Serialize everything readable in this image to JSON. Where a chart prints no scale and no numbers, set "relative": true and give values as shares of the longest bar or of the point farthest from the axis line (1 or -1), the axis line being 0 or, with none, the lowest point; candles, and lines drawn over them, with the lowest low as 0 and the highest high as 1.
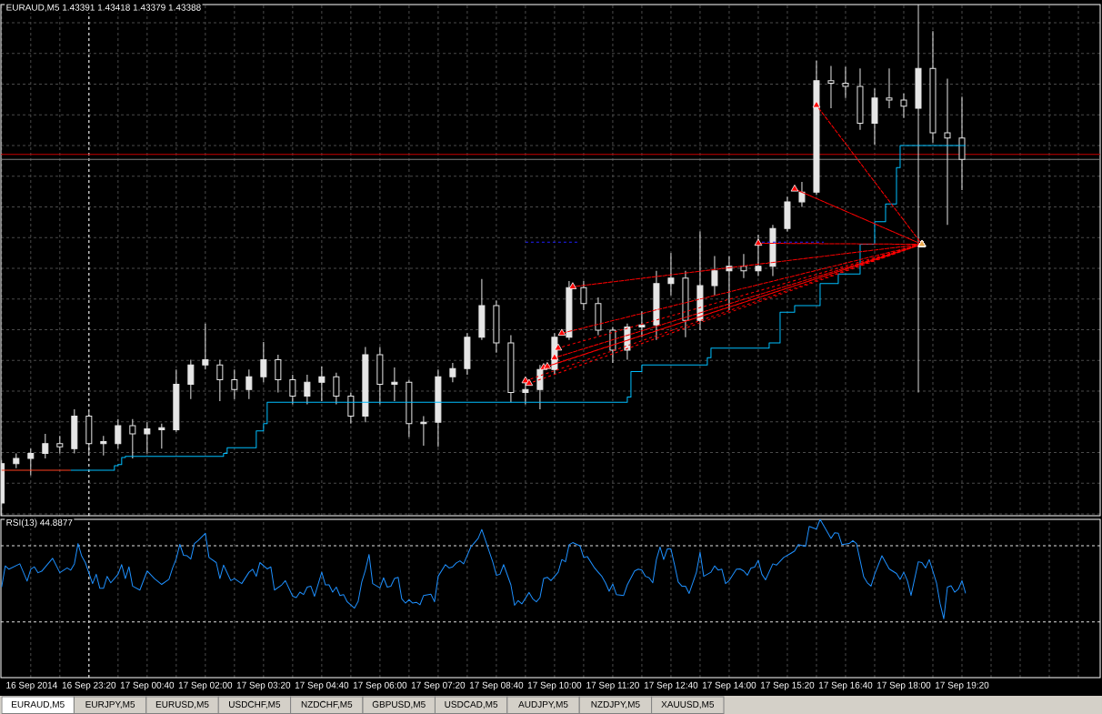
{
  "chart_data": [
    {
      "type": "candlestick",
      "title": "EURAUD,M5 1.43391 1.43418 1.43379 1.43388",
      "relative": true,
      "color": "#e6e6e6",
      "x": [
        "2014-09-16T21:20",
        "2014-09-16T21:40",
        "2014-09-16T22:00",
        "2014-09-16T22:20",
        "2014-09-16T22:40",
        "2014-09-16T23:00",
        "2014-09-16T23:20",
        "2014-09-16T23:40",
        "2014-09-17T00:00",
        "2014-09-17T00:20",
        "2014-09-17T00:40",
        "2014-09-17T01:00",
        "2014-09-17T01:20",
        "2014-09-17T01:40",
        "2014-09-17T02:00",
        "2014-09-17T02:20",
        "2014-09-17T02:40",
        "2014-09-17T03:00",
        "2014-09-17T03:20",
        "2014-09-17T03:40",
        "2014-09-17T04:00",
        "2014-09-17T04:20",
        "2014-09-17T04:40",
        "2014-09-17T05:00",
        "2014-09-17T05:20",
        "2014-09-17T05:40",
        "2014-09-17T06:00",
        "2014-09-17T06:20",
        "2014-09-17T06:40",
        "2014-09-17T07:00",
        "2014-09-17T07:20",
        "2014-09-17T07:40",
        "2014-09-17T08:00",
        "2014-09-17T08:20",
        "2014-09-17T08:40",
        "2014-09-17T09:00",
        "2014-09-17T09:20",
        "2014-09-17T09:40",
        "2014-09-17T10:00",
        "2014-09-17T10:20",
        "2014-09-17T10:40",
        "2014-09-17T11:00",
        "2014-09-17T11:20",
        "2014-09-17T11:40",
        "2014-09-17T12:00",
        "2014-09-17T12:20",
        "2014-09-17T12:40",
        "2014-09-17T13:00",
        "2014-09-17T13:20",
        "2014-09-17T13:40",
        "2014-09-17T14:00",
        "2014-09-17T14:20",
        "2014-09-17T14:40",
        "2014-09-17T15:00",
        "2014-09-17T15:20",
        "2014-09-17T15:40",
        "2014-09-17T16:00",
        "2014-09-17T16:20",
        "2014-09-17T16:40",
        "2014-09-17T17:00",
        "2014-09-17T17:20",
        "2014-09-17T17:40",
        "2014-09-17T18:00",
        "2014-09-17T18:20",
        "2014-09-17T18:40",
        "2014-09-17T19:00",
        "2014-09-17T19:20"
      ],
      "ohlc": [
        [
          0.025,
          0.108,
          0,
          0.102
        ],
        [
          0.102,
          0.122,
          0.093,
          0.112
        ],
        [
          0.112,
          0.131,
          0.079,
          0.122
        ],
        [
          0.122,
          0.16,
          0.112,
          0.141
        ],
        [
          0.141,
          0.156,
          0.122,
          0.135
        ],
        [
          0.131,
          0.208,
          0.122,
          0.195
        ],
        [
          0.195,
          0.203,
          0.122,
          0.141
        ],
        [
          0.141,
          0.156,
          0.118,
          0.145
        ],
        [
          0.141,
          0.189,
          0.131,
          0.176
        ],
        [
          0.176,
          0.189,
          0.112,
          0.16
        ],
        [
          0.16,
          0.183,
          0.122,
          0.17
        ],
        [
          0.168,
          0.18,
          0.131,
          0.172
        ],
        [
          0.168,
          0.286,
          0.164,
          0.257
        ],
        [
          0.257,
          0.305,
          0.228,
          0.295
        ],
        [
          0.295,
          0.376,
          0.286,
          0.305
        ],
        [
          0.295,
          0.305,
          0.224,
          0.266
        ],
        [
          0.266,
          0.286,
          0.228,
          0.247
        ],
        [
          0.247,
          0.286,
          0.228,
          0.272
        ],
        [
          0.272,
          0.34,
          0.261,
          0.305
        ],
        [
          0.305,
          0.315,
          0.241,
          0.266
        ],
        [
          0.266,
          0.276,
          0.218,
          0.234
        ],
        [
          0.234,
          0.276,
          0.218,
          0.261
        ],
        [
          0.261,
          0.292,
          0.224,
          0.272
        ],
        [
          0.272,
          0.28,
          0.218,
          0.234
        ],
        [
          0.234,
          0.241,
          0.18,
          0.195
        ],
        [
          0.195,
          0.33,
          0.183,
          0.315
        ],
        [
          0.315,
          0.33,
          0.218,
          0.257
        ],
        [
          0.257,
          0.29,
          0.224,
          0.261
        ],
        [
          0.261,
          0.266,
          0.154,
          0.18
        ],
        [
          0.18,
          0.195,
          0.137,
          0.183
        ],
        [
          0.183,
          0.286,
          0.135,
          0.272
        ],
        [
          0.272,
          0.299,
          0.261,
          0.288
        ],
        [
          0.288,
          0.357,
          0.276,
          0.349
        ],
        [
          0.349,
          0.463,
          0.344,
          0.411
        ],
        [
          0.411,
          0.421,
          0.319,
          0.338
        ],
        [
          0.338,
          0.353,
          0.222,
          0.241
        ],
        [
          0.241,
          0.266,
          0.218,
          0.247
        ],
        [
          0.247,
          0.295,
          0.208,
          0.286
        ],
        [
          0.286,
          0.357,
          0.276,
          0.349
        ],
        [
          0.349,
          0.459,
          0.344,
          0.446
        ],
        [
          0.446,
          0.459,
          0.402,
          0.415
        ],
        [
          0.415,
          0.427,
          0.353,
          0.363
        ],
        [
          0.363,
          0.369,
          0.299,
          0.324
        ],
        [
          0.324,
          0.376,
          0.305,
          0.369
        ],
        [
          0.369,
          0.4,
          0.349,
          0.373
        ],
        [
          0.373,
          0.479,
          0.344,
          0.454
        ],
        [
          0.454,
          0.514,
          0.431,
          0.465
        ],
        [
          0.465,
          0.479,
          0.349,
          0.382
        ],
        [
          0.382,
          0.556,
          0.363,
          0.45
        ],
        [
          0.45,
          0.508,
          0.431,
          0.479
        ],
        [
          0.479,
          0.508,
          0.402,
          0.488
        ],
        [
          0.488,
          0.512,
          0.465,
          0.479
        ],
        [
          0.479,
          0.55,
          0.469,
          0.488
        ],
        [
          0.488,
          0.569,
          0.469,
          0.562
        ],
        [
          0.562,
          0.624,
          0.556,
          0.614
        ],
        [
          0.614,
          0.653,
          0.604,
          0.633
        ],
        [
          0.633,
          0.89,
          0.627,
          0.851
        ],
        [
          0.851,
          0.88,
          0.797,
          0.846
        ],
        [
          0.846,
          0.878,
          0.817,
          0.84
        ],
        [
          0.84,
          0.875,
          0.755,
          0.768
        ],
        [
          0.768,
          0.836,
          0.726,
          0.817
        ],
        [
          0.817,
          0.875,
          0.797,
          0.813
        ],
        [
          0.813,
          0.826,
          0.778,
          0.801
        ],
        [
          0.797,
          1,
          0.241,
          0.875
        ],
        [
          0.875,
          0.948,
          0.73,
          0.749
        ],
        [
          0.749,
          0.855,
          0.569,
          0.739
        ],
        [
          0.739,
          0.82,
          0.637,
          0.697
        ]
      ],
      "series": [
        {
          "type": "step",
          "color": "#ff4020",
          "x": [
            "2014-09-16T21:20",
            "2014-09-16T22:55"
          ],
          "values": [
            0.089,
            0.089
          ]
        },
        {
          "type": "step",
          "color": "#00bfff",
          "x": [
            "2014-09-16T22:55",
            "2014-09-16T23:55",
            "2014-09-17T00:00",
            "2014-09-17T00:05",
            "2014-09-17T00:10",
            "2014-09-17T02:25",
            "2014-09-17T02:30",
            "2014-09-17T03:10",
            "2014-09-17T03:20",
            "2014-09-17T03:25",
            "2014-09-17T11:40",
            "2014-09-17T11:45",
            "2014-09-17T12:00",
            "2014-09-17T13:30",
            "2014-09-17T13:35",
            "2014-09-17T14:55",
            "2014-09-17T15:10",
            "2014-09-17T15:30",
            "2014-09-17T16:05",
            "2014-09-17T16:30",
            "2014-09-17T17:00",
            "2014-09-17T17:20",
            "2014-09-17T17:35",
            "2014-09-17T17:50",
            "2014-09-17T17:55",
            "2014-09-17T19:25"
          ],
          "values": [
            0.089,
            0.098,
            0.1,
            0.114,
            0.116,
            0.122,
            0.133,
            0.166,
            0.18,
            0.222,
            0.232,
            0.282,
            0.295,
            0.309,
            0.328,
            0.338,
            0.398,
            0.411,
            0.454,
            0.473,
            0.531,
            0.575,
            0.61,
            0.681,
            0.724,
            0.724
          ]
        },
        {
          "type": "line",
          "color": "#2020ff",
          "line_style": "dashed",
          "x": [
            "2014-09-17T09:20",
            "2014-09-17T10:35"
          ],
          "values": [
            0.535,
            0.535
          ]
        },
        {
          "type": "line",
          "color": "#2020ff",
          "line_style": "dashed",
          "x": [
            "2014-09-17T14:45",
            "2014-09-17T16:10"
          ],
          "values": [
            0.535,
            0.535
          ]
        },
        {
          "type": "line",
          "color": "#ff0000",
          "line_style": "dashed",
          "marker": "triangle",
          "x": [
            "2014-09-17T09:20",
            "2014-09-17T18:25",
            "2014-09-17T09:25",
            "2014-09-17T18:25",
            "2014-09-17T09:45",
            "2014-09-17T18:25",
            "2014-09-17T09:50",
            "2014-09-17T18:25",
            "2014-09-17T10:00",
            "2014-09-17T18:25",
            "2014-09-17T10:05",
            "2014-09-17T18:25",
            "2014-09-17T10:10",
            "2014-09-17T18:25",
            "2014-09-17T10:25",
            "2014-09-17T18:25",
            "2014-09-17T14:40",
            "2014-09-17T18:25",
            "2014-09-17T15:30",
            "2014-09-17T18:25",
            "2014-09-17T16:00",
            "2014-09-17T18:25"
          ],
          "values": [
            0.264,
            0.531,
            0.259,
            0.531,
            0.29,
            0.531,
            0.292,
            0.531,
            0.309,
            0.531,
            0.328,
            0.531,
            0.357,
            0.531,
            0.448,
            0.531,
            0.533,
            0.531,
            0.639,
            0.531,
            0.803,
            0.531
          ]
        },
        {
          "type": "scatter",
          "color": "#e8a84c",
          "marker": "triangle",
          "x": [
            "2014-09-17T18:25"
          ],
          "values": [
            0.531
          ]
        }
      ],
      "xlim": [
        "2014-09-16T21:19",
        "2014-09-17T22:30"
      ],
      "xticks": [
        {
          "value": "2014-09-16T21:20",
          "label": null
        },
        {
          "value": "2014-09-16T23:20",
          "label": null
        },
        {
          "value": "2014-09-17T00:40",
          "label": null
        },
        {
          "value": "2014-09-17T02:00",
          "label": null
        },
        {
          "value": "2014-09-17T03:20",
          "label": null
        },
        {
          "value": "2014-09-17T04:40",
          "label": null
        },
        {
          "value": "2014-09-17T06:00",
          "label": null
        },
        {
          "value": "2014-09-17T07:20",
          "label": null
        },
        {
          "value": "2014-09-17T08:40",
          "label": null
        },
        {
          "value": "2014-09-17T10:00",
          "label": null
        },
        {
          "value": "2014-09-17T11:20",
          "label": null
        },
        {
          "value": "2014-09-17T12:40",
          "label": null
        },
        {
          "value": "2014-09-17T14:00",
          "label": null
        },
        {
          "value": "2014-09-17T15:20",
          "label": null
        },
        {
          "value": "2014-09-17T16:40",
          "label": null
        },
        {
          "value": "2014-09-17T18:00",
          "label": null
        },
        {
          "value": "2014-09-17T19:20",
          "label": null
        }
      ],
      "grid": true,
      "tick_labels": false,
      "ref_lines": [
        {
          "axis": "x",
          "value": "2014-09-16T23:20",
          "color": "#ffffff",
          "line_style": "dashed"
        },
        {
          "axis": "y",
          "value": 0.707,
          "color": "#c80000"
        },
        {
          "axis": "y",
          "value": 0.697,
          "color": "#808080"
        }
      ]
    },
    {
      "type": "line",
      "title": "RSI(13) 44.8877",
      "relative": true,
      "x": [
        "2014-09-16T21:20",
        "2014-09-16T21:25",
        "2014-09-16T21:30",
        "2014-09-16T21:45",
        "2014-09-16T21:55",
        "2014-09-16T22:00",
        "2014-09-16T22:05",
        "2014-09-16T22:10",
        "2014-09-16T22:15",
        "2014-09-16T22:30",
        "2014-09-16T22:40",
        "2014-09-16T22:50",
        "2014-09-16T22:55",
        "2014-09-16T23:00",
        "2014-09-16T23:05",
        "2014-09-16T23:10",
        "2014-09-16T23:15",
        "2014-09-16T23:25",
        "2014-09-16T23:30",
        "2014-09-16T23:35",
        "2014-09-16T23:40",
        "2014-09-16T23:45",
        "2014-09-16T23:50",
        "2014-09-17T00:00",
        "2014-09-17T00:05",
        "2014-09-17T00:10",
        "2014-09-17T00:15",
        "2014-09-17T00:20",
        "2014-09-17T00:30",
        "2014-09-17T00:40",
        "2014-09-17T00:50",
        "2014-09-17T01:00",
        "2014-09-17T01:10",
        "2014-09-17T01:15",
        "2014-09-17T01:20",
        "2014-09-17T01:25",
        "2014-09-17T01:30",
        "2014-09-17T01:35",
        "2014-09-17T01:40",
        "2014-09-17T01:45",
        "2014-09-17T01:50",
        "2014-09-17T02:00",
        "2014-09-17T02:05",
        "2014-09-17T02:15",
        "2014-09-17T02:20",
        "2014-09-17T02:25",
        "2014-09-17T02:35",
        "2014-09-17T02:40",
        "2014-09-17T02:50",
        "2014-09-17T03:00",
        "2014-09-17T03:05",
        "2014-09-17T03:10",
        "2014-09-17T03:15",
        "2014-09-17T03:25",
        "2014-09-17T03:30",
        "2014-09-17T03:35",
        "2014-09-17T03:45",
        "2014-09-17T03:50",
        "2014-09-17T04:00",
        "2014-09-17T04:05",
        "2014-09-17T04:10",
        "2014-09-17T04:15",
        "2014-09-17T04:20",
        "2014-09-17T04:25",
        "2014-09-17T04:30",
        "2014-09-17T04:40",
        "2014-09-17T04:45",
        "2014-09-17T04:50",
        "2014-09-17T04:55",
        "2014-09-17T05:00",
        "2014-09-17T05:05",
        "2014-09-17T05:10",
        "2014-09-17T05:15",
        "2014-09-17T05:25",
        "2014-09-17T05:30",
        "2014-09-17T05:35",
        "2014-09-17T05:40",
        "2014-09-17T05:45",
        "2014-09-17T05:50",
        "2014-09-17T06:00",
        "2014-09-17T06:05",
        "2014-09-17T06:10",
        "2014-09-17T06:15",
        "2014-09-17T06:20",
        "2014-09-17T06:25",
        "2014-09-17T06:30",
        "2014-09-17T06:35",
        "2014-09-17T06:40",
        "2014-09-17T06:45",
        "2014-09-17T06:50",
        "2014-09-17T06:55",
        "2014-09-17T07:00",
        "2014-09-17T07:10",
        "2014-09-17T07:15",
        "2014-09-17T07:20",
        "2014-09-17T07:30",
        "2014-09-17T07:35",
        "2014-09-17T07:40",
        "2014-09-17T07:45",
        "2014-09-17T07:50",
        "2014-09-17T07:55",
        "2014-09-17T08:05",
        "2014-09-17T08:10",
        "2014-09-17T08:15",
        "2014-09-17T08:20",
        "2014-09-17T08:30",
        "2014-09-17T08:35",
        "2014-09-17T08:40",
        "2014-09-17T08:45",
        "2014-09-17T08:50",
        "2014-09-17T09:00",
        "2014-09-17T09:05",
        "2014-09-17T09:10",
        "2014-09-17T09:15",
        "2014-09-17T09:25",
        "2014-09-17T09:30",
        "2014-09-17T09:35",
        "2014-09-17T09:40",
        "2014-09-17T09:45",
        "2014-09-17T09:50",
        "2014-09-17T09:55",
        "2014-09-17T10:05",
        "2014-09-17T10:10",
        "2014-09-17T10:15",
        "2014-09-17T10:20",
        "2014-09-17T10:25",
        "2014-09-17T10:35",
        "2014-09-17T10:40",
        "2014-09-17T10:45",
        "2014-09-17T10:55",
        "2014-09-17T11:00",
        "2014-09-17T11:05",
        "2014-09-17T11:10",
        "2014-09-17T11:15",
        "2014-09-17T11:20",
        "2014-09-17T11:25",
        "2014-09-17T11:35",
        "2014-09-17T11:40",
        "2014-09-17T11:50",
        "2014-09-17T11:55",
        "2014-09-17T12:00",
        "2014-09-17T12:05",
        "2014-09-17T12:10",
        "2014-09-17T12:15",
        "2014-09-17T12:20",
        "2014-09-17T12:25",
        "2014-09-17T12:30",
        "2014-09-17T12:35",
        "2014-09-17T12:40",
        "2014-09-17T12:45",
        "2014-09-17T12:50",
        "2014-09-17T12:55",
        "2014-09-17T13:00",
        "2014-09-17T13:05",
        "2014-09-17T13:15",
        "2014-09-17T13:20",
        "2014-09-17T13:25",
        "2014-09-17T13:35",
        "2014-09-17T13:40",
        "2014-09-17T13:45",
        "2014-09-17T13:50",
        "2014-09-17T13:55",
        "2014-09-17T14:00",
        "2014-09-17T14:10",
        "2014-09-17T14:15",
        "2014-09-17T14:20",
        "2014-09-17T14:25",
        "2014-09-17T14:30",
        "2014-09-17T14:35",
        "2014-09-17T14:40",
        "2014-09-17T14:45",
        "2014-09-17T14:50",
        "2014-09-17T15:00",
        "2014-09-17T15:05",
        "2014-09-17T15:15",
        "2014-09-17T15:25",
        "2014-09-17T15:30",
        "2014-09-17T15:35",
        "2014-09-17T15:45",
        "2014-09-17T15:50",
        "2014-09-17T16:00",
        "2014-09-17T16:05",
        "2014-09-17T16:15",
        "2014-09-17T16:20",
        "2014-09-17T16:25",
        "2014-09-17T16:30",
        "2014-09-17T16:35",
        "2014-09-17T16:45",
        "2014-09-17T16:50",
        "2014-09-17T16:55",
        "2014-09-17T17:05",
        "2014-09-17T17:10",
        "2014-09-17T17:15",
        "2014-09-17T17:20",
        "2014-09-17T17:30",
        "2014-09-17T17:40",
        "2014-09-17T17:50",
        "2014-09-17T17:55",
        "2014-09-17T18:00",
        "2014-09-17T18:05",
        "2014-09-17T18:10",
        "2014-09-17T18:20",
        "2014-09-17T18:25",
        "2014-09-17T18:30",
        "2014-09-17T18:35",
        "2014-09-17T18:45",
        "2014-09-17T18:50",
        "2014-09-17T18:55",
        "2014-09-17T19:00",
        "2014-09-17T19:05",
        "2014-09-17T19:10",
        "2014-09-17T19:15",
        "2014-09-17T19:20",
        "2014-09-17T19:25"
      ],
      "series": [
        {
          "color": "#1e90ff",
          "values": [
            0.572,
            0.706,
            0.685,
            0.719,
            0.61,
            0.685,
            0.7,
            0.663,
            0.672,
            0.754,
            0.663,
            0.693,
            0.679,
            0.719,
            0.847,
            0.768,
            0.727,
            0.594,
            0.653,
            0.564,
            0.564,
            0.64,
            0.599,
            0.653,
            0.714,
            0.626,
            0.7,
            0.578,
            0.553,
            0.674,
            0.626,
            0.589,
            0.621,
            0.693,
            0.751,
            0.842,
            0.773,
            0.77,
            0.749,
            0.847,
            0.866,
            0.912,
            0.759,
            0.727,
            0.626,
            0.711,
            0.613,
            0.626,
            0.594,
            0.666,
            0.685,
            0.64,
            0.727,
            0.687,
            0.7,
            0.553,
            0.586,
            0.613,
            0.514,
            0.506,
            0.54,
            0.525,
            0.572,
            0.578,
            0.514,
            0.666,
            0.586,
            0.586,
            0.54,
            0.572,
            0.519,
            0.525,
            0.479,
            0.439,
            0.481,
            0.604,
            0.679,
            0.778,
            0.594,
            0.567,
            0.631,
            0.572,
            0.578,
            0.626,
            0.634,
            0.498,
            0.471,
            0.492,
            0.471,
            0.476,
            0.46,
            0.519,
            0.527,
            0.479,
            0.64,
            0.714,
            0.693,
            0.7,
            0.725,
            0.738,
            0.719,
            0.826,
            0.853,
            0.88,
            0.936,
            0.8,
            0.732,
            0.647,
            0.653,
            0.714,
            0.586,
            0.457,
            0.487,
            0.466,
            0.538,
            0.498,
            0.479,
            0.506,
            0.626,
            0.634,
            0.613,
            0.666,
            0.746,
            0.732,
            0.84,
            0.853,
            0.832,
            0.759,
            0.765,
            0.693,
            0.666,
            0.64,
            0.599,
            0.546,
            0.591,
            0.525,
            0.519,
            0.586,
            0.674,
            0.685,
            0.679,
            0.64,
            0.631,
            0.599,
            0.746,
            0.826,
            0.746,
            0.813,
            0.813,
            0.711,
            0.604,
            0.578,
            0.578,
            0.532,
            0.666,
            0.792,
            0.64,
            0.666,
            0.706,
            0.679,
            0.685,
            0.594,
            0.613,
            0.685,
            0.687,
            0.674,
            0.647,
            0.693,
            0.698,
            0.741,
            0.653,
            0.618,
            0.719,
            0.711,
            0.759,
            0.786,
            0.8,
            0.84,
            0.829,
            0.955,
            0.938,
            1,
            0.92,
            0.88,
            0.915,
            0.912,
            0.84,
            0.847,
            0.866,
            0.847,
            0.636,
            0.599,
            0.578,
            0.653,
            0.77,
            0.687,
            0.658,
            0.621,
            0.666,
            0.613,
            0.519,
            0.732,
            0.727,
            0.693,
            0.746,
            0.599,
            0.466,
            0.372,
            0.572,
            0.58,
            0.54,
            0.559,
            0.613,
            0.532
          ]
        }
      ],
      "xlim": [
        "2014-09-16T21:19",
        "2014-09-17T22:30"
      ],
      "xticks": [
        {
          "value": "2014-09-16T21:20",
          "label": "16 Sep 2014"
        },
        {
          "value": "2014-09-16T23:20",
          "label": "16 Sep 23:20"
        },
        {
          "value": "2014-09-17T00:40",
          "label": "17 Sep 00:40"
        },
        {
          "value": "2014-09-17T02:00",
          "label": "17 Sep 02:00"
        },
        {
          "value": "2014-09-17T03:20",
          "label": "17 Sep 03:20"
        },
        {
          "value": "2014-09-17T04:40",
          "label": "17 Sep 04:40"
        },
        {
          "value": "2014-09-17T06:00",
          "label": "17 Sep 06:00"
        },
        {
          "value": "2014-09-17T07:20",
          "label": "17 Sep 07:20"
        },
        {
          "value": "2014-09-17T08:40",
          "label": "17 Sep 08:40"
        },
        {
          "value": "2014-09-17T10:00",
          "label": "17 Sep 10:00"
        },
        {
          "value": "2014-09-17T11:20",
          "label": "17 Sep 11:20"
        },
        {
          "value": "2014-09-17T12:40",
          "label": "17 Sep 12:40"
        },
        {
          "value": "2014-09-17T14:00",
          "label": "17 Sep 14:00"
        },
        {
          "value": "2014-09-17T15:20",
          "label": "17 Sep 15:20"
        },
        {
          "value": "2014-09-17T16:40",
          "label": "17 Sep 16:40"
        },
        {
          "value": "2014-09-17T18:00",
          "label": "17 Sep 18:00"
        },
        {
          "value": "2014-09-17T19:20",
          "label": "17 Sep 19:20"
        }
      ],
      "grid": "x",
      "tick_labels": "x",
      "ref_lines": [
        {
          "axis": "x",
          "value": "2014-09-16T23:20",
          "color": "#ffffff",
          "line_style": "dashed"
        },
        {
          "axis": "y",
          "value": 0.834,
          "color": "#e0e0e0",
          "line_style": "dashed"
        },
        {
          "axis": "y",
          "value": 0.352,
          "color": "#e0e0e0",
          "line_style": "dashed"
        }
      ]
    },
    {
      "type": "other",
      "annotations": [
        "EURAUD,M5",
        "EURJPY,M5",
        "EURUSD,M5",
        "USDCHF,M5",
        "NZDCHF,M5",
        "GBPUSD,M5",
        "USDCAD,M5",
        "AUDJPY,M5",
        "NZDJPY,M5",
        "XAUUSD,M5"
      ]
    }
  ]
}
